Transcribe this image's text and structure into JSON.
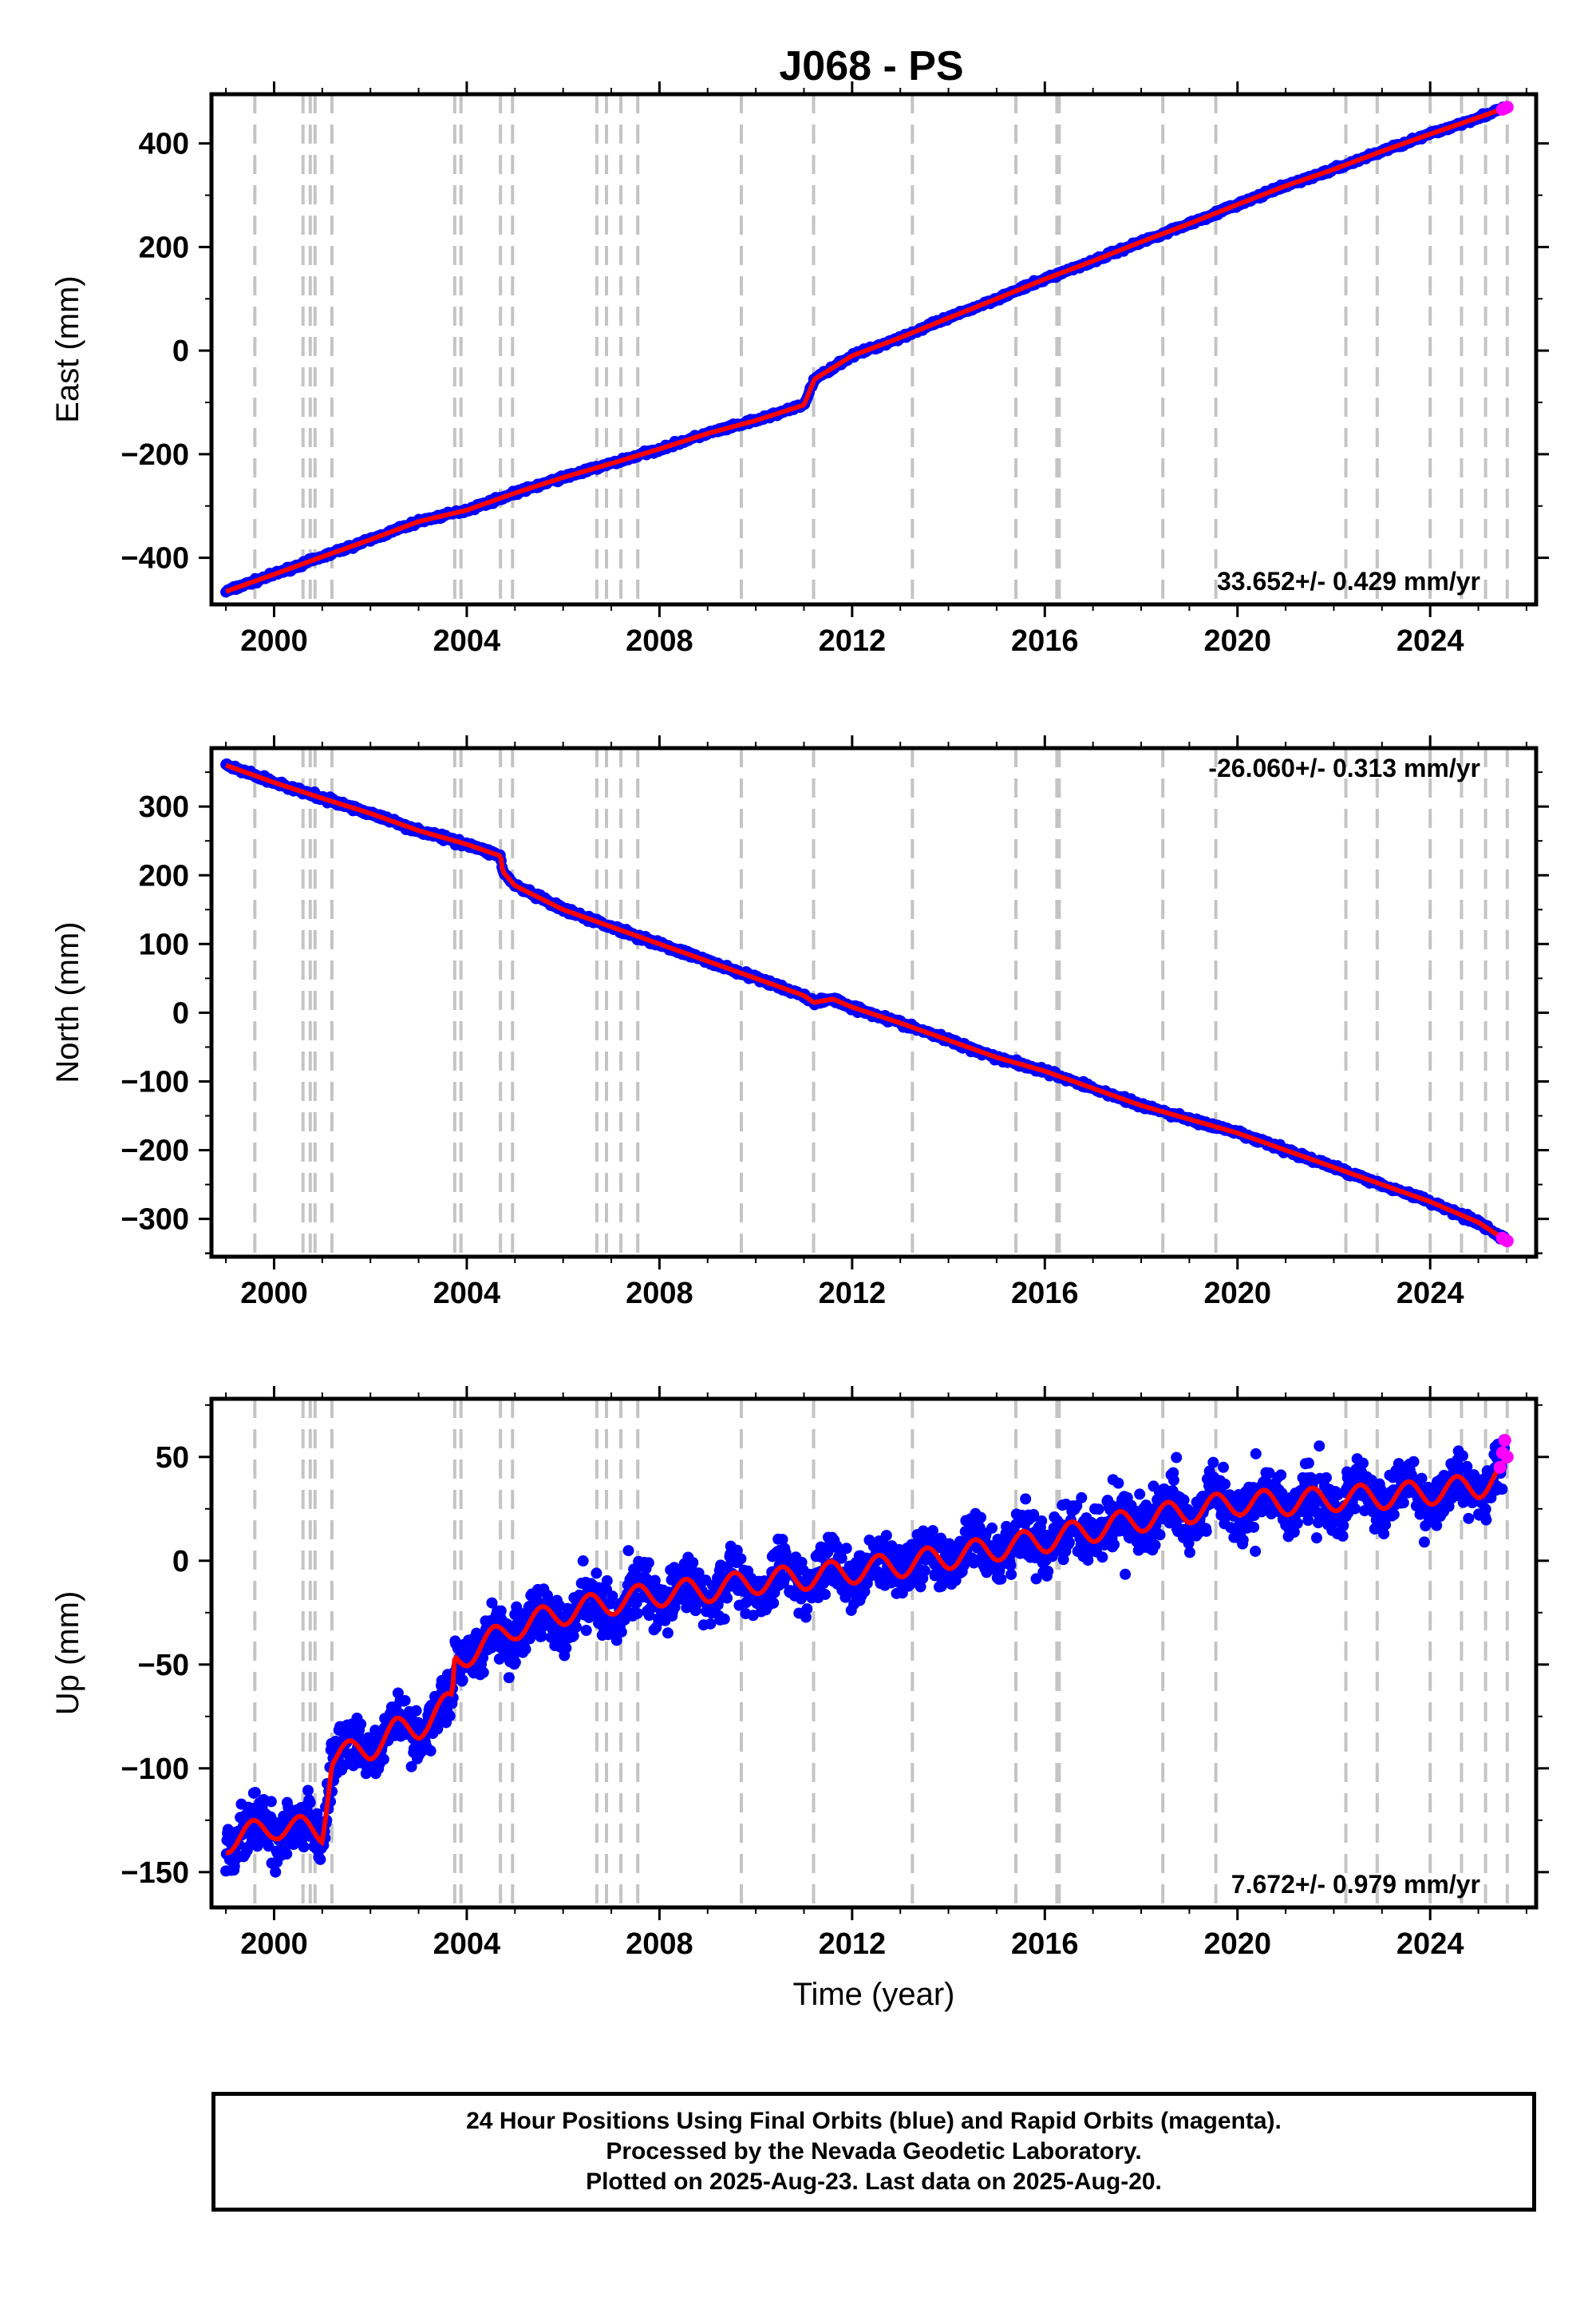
{
  "title": "J068 - PS",
  "chart_data": [
    {
      "type": "scatter",
      "panel": "east",
      "ylabel": "East (mm)",
      "xlabel": "",
      "xlim": [
        1998.7,
        2026.2
      ],
      "ylim": [
        -490,
        495
      ],
      "xticks": [
        2000,
        2004,
        2008,
        2012,
        2016,
        2020,
        2024
      ],
      "xtick_labels": [
        "2000",
        "2004",
        "2008",
        "2012",
        "2016",
        "2020",
        "2024"
      ],
      "yticks": [
        -400,
        -200,
        0,
        200,
        400
      ],
      "ytick_labels": [
        "−400",
        "−200",
        "0",
        "200",
        "400"
      ],
      "rate_label": "33.652+/- 0.429 mm/yr",
      "rate_position": "bottom-right",
      "event_lines_x": [
        1999.6,
        2000.6,
        2000.75,
        2000.85,
        2001.2,
        2003.75,
        2003.88,
        2004.7,
        2004.95,
        2006.7,
        2006.9,
        2007.2,
        2007.55,
        2009.7,
        2011.2,
        2013.25,
        2015.4,
        2016.25,
        2016.3,
        2018.45,
        2019.55,
        2022.25,
        2022.9,
        2024.0,
        2024.65,
        2025.15,
        2025.6
      ],
      "series": [
        {
          "name": "Final Orbits",
          "color": "#0000ff",
          "x": [
            1999.0,
            2000.0,
            2001.0,
            2002.0,
            2003.0,
            2004.0,
            2005.0,
            2006.0,
            2007.0,
            2008.0,
            2009.0,
            2010.0,
            2011.0,
            2011.22,
            2012.0,
            2013.0,
            2014.0,
            2015.0,
            2016.0,
            2017.0,
            2018.0,
            2019.0,
            2020.0,
            2021.0,
            2022.0,
            2023.0,
            2024.0,
            2025.0,
            2025.55
          ],
          "y": [
            -465,
            -432,
            -398,
            -365,
            -330,
            -308,
            -275,
            -245,
            -218,
            -190,
            -160,
            -135,
            -105,
            -55,
            -10,
            25,
            63,
            100,
            138,
            173,
            210,
            245,
            282,
            318,
            350,
            385,
            418,
            450,
            468
          ]
        },
        {
          "name": "Rapid Orbits",
          "color": "#ff00ff",
          "x": [
            2025.5,
            2025.55,
            2025.6
          ],
          "y": [
            466,
            468,
            470
          ]
        }
      ],
      "model_color": "#ff0000"
    },
    {
      "type": "scatter",
      "panel": "north",
      "ylabel": "North (mm)",
      "xlabel": "",
      "xlim": [
        1998.7,
        2026.2
      ],
      "ylim": [
        -355,
        385
      ],
      "xticks": [
        2000,
        2004,
        2008,
        2012,
        2016,
        2020,
        2024
      ],
      "xtick_labels": [
        "2000",
        "2004",
        "2008",
        "2012",
        "2016",
        "2020",
        "2024"
      ],
      "yticks": [
        -300,
        -200,
        -100,
        0,
        100,
        200,
        300
      ],
      "ytick_labels": [
        "−300",
        "−200",
        "−100",
        "0",
        "100",
        "200",
        "300"
      ],
      "rate_label": "-26.060+/- 0.313 mm/yr",
      "rate_position": "top-right",
      "event_lines_x": [
        1999.6,
        2000.6,
        2000.75,
        2000.85,
        2001.2,
        2003.75,
        2003.88,
        2004.7,
        2004.95,
        2006.7,
        2006.9,
        2007.2,
        2007.55,
        2009.7,
        2011.2,
        2013.25,
        2015.4,
        2016.25,
        2016.3,
        2018.45,
        2019.55,
        2022.25,
        2022.9,
        2024.0,
        2024.65,
        2025.15,
        2025.6
      ],
      "series": [
        {
          "name": "Final Orbits",
          "color": "#0000ff",
          "x": [
            1999.0,
            2000.0,
            2001.0,
            2002.0,
            2003.0,
            2004.0,
            2004.7,
            2004.75,
            2005.0,
            2006.0,
            2007.0,
            2008.0,
            2009.0,
            2010.0,
            2011.0,
            2011.2,
            2011.22,
            2011.6,
            2012.0,
            2013.0,
            2014.0,
            2015.0,
            2016.0,
            2017.0,
            2018.0,
            2019.0,
            2020.0,
            2021.0,
            2022.0,
            2023.0,
            2024.0,
            2025.0,
            2025.55
          ],
          "y": [
            360,
            335,
            312,
            290,
            265,
            245,
            228,
            205,
            185,
            150,
            125,
            100,
            75,
            50,
            25,
            15,
            15,
            20,
            8,
            -15,
            -40,
            -65,
            -85,
            -110,
            -135,
            -155,
            -175,
            -200,
            -225,
            -250,
            -275,
            -305,
            -330
          ]
        },
        {
          "name": "Rapid Orbits",
          "color": "#ff00ff",
          "x": [
            2025.5,
            2025.55,
            2025.6
          ],
          "y": [
            -328,
            -330,
            -332
          ]
        }
      ],
      "model_color": "#ff0000"
    },
    {
      "type": "scatter",
      "panel": "up",
      "ylabel": "Up (mm)",
      "xlabel": "Time (year)",
      "xlim": [
        1998.7,
        2026.2
      ],
      "ylim": [
        -167,
        78
      ],
      "xticks": [
        2000,
        2004,
        2008,
        2012,
        2016,
        2020,
        2024
      ],
      "xtick_labels": [
        "2000",
        "2004",
        "2008",
        "2012",
        "2016",
        "2020",
        "2024"
      ],
      "yticks": [
        -150,
        -100,
        -50,
        0,
        50
      ],
      "ytick_labels": [
        "−150",
        "−100",
        "−50",
        "0",
        "50"
      ],
      "rate_label": "7.672+/- 0.979 mm/yr",
      "rate_position": "bottom-right",
      "event_lines_x": [
        1999.6,
        2000.6,
        2000.75,
        2000.85,
        2001.2,
        2003.75,
        2003.88,
        2004.7,
        2004.95,
        2006.7,
        2006.9,
        2007.2,
        2007.55,
        2009.7,
        2011.2,
        2013.25,
        2015.4,
        2016.25,
        2016.3,
        2018.45,
        2019.55,
        2022.25,
        2022.9,
        2024.0,
        2024.65,
        2025.15,
        2025.6
      ],
      "series": [
        {
          "name": "Final Orbits",
          "color": "#0000ff",
          "x": [
            1999.0,
            2000.0,
            2001.0,
            2001.2,
            2002.0,
            2002.5,
            2003.0,
            2003.7,
            2003.75,
            2004.0,
            2005.0,
            2006.0,
            2007.0,
            2008.0,
            2009.0,
            2010.0,
            2011.0,
            2012.0,
            2013.0,
            2014.0,
            2015.0,
            2016.0,
            2017.0,
            2018.0,
            2019.0,
            2020.0,
            2021.0,
            2022.0,
            2023.0,
            2024.0,
            2025.0,
            2025.55
          ],
          "y": [
            -135,
            -128,
            -130,
            -95,
            -90,
            -82,
            -80,
            -68,
            -48,
            -45,
            -32,
            -25,
            -20,
            -16,
            -14,
            -10,
            -8,
            -5,
            -2,
            2,
            6,
            10,
            15,
            20,
            24,
            28,
            28,
            30,
            31,
            33,
            36,
            42
          ]
        },
        {
          "name": "Rapid Orbits",
          "color": "#ff00ff",
          "x": [
            2025.45,
            2025.5,
            2025.55,
            2025.6
          ],
          "y": [
            45,
            52,
            58,
            50
          ]
        }
      ],
      "model_color": "#ff0000"
    }
  ],
  "caption": {
    "line1": "24 Hour Positions Using Final Orbits (blue) and Rapid Orbits (magenta).",
    "line2": "Processed by the Nevada Geodetic Laboratory.",
    "line3": "Plotted on 2025-Aug-23. Last data on 2025-Aug-20."
  }
}
